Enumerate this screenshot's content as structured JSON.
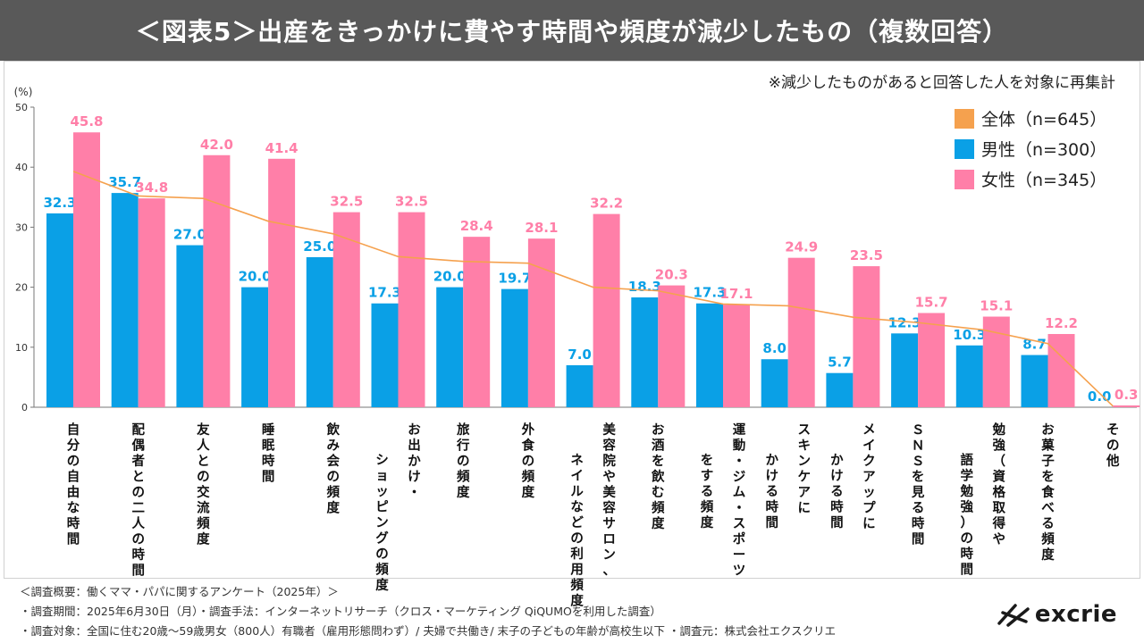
{
  "header": {
    "title": "＜図表5＞出産をきっかけに費やす時間や頻度が減少したもの（複数回答）"
  },
  "note": "※減少したものがあると回答した人を対象に再集計",
  "colors": {
    "overall": "#f5a14e",
    "male": "#0aa0e6",
    "female": "#ff7fa8",
    "header_bg": "#595959"
  },
  "chart_data": {
    "type": "bar",
    "unit_label": "(%)",
    "ylim": [
      0,
      50
    ],
    "yticks": [
      0,
      10,
      20,
      30,
      40,
      50
    ],
    "grid": false,
    "legend_position": "top-right",
    "categories": [
      [
        "自分の自由な時間"
      ],
      [
        "配偶者との二人の時間"
      ],
      [
        "友人との交流頻度"
      ],
      [
        "睡眠時間"
      ],
      [
        "飲み会の頻度"
      ],
      [
        "ショッピングの頻度",
        "お出かけ・"
      ],
      [
        "旅行の頻度"
      ],
      [
        "外食の頻度"
      ],
      [
        "ネイルなどの利用頻度",
        "美容院や美容サロン、"
      ],
      [
        "お酒を飲む頻度"
      ],
      [
        "をする頻度",
        "運動・ジム・スポーツ"
      ],
      [
        "かける時間",
        "スキンケアに"
      ],
      [
        "かける時間",
        "メイクアップに"
      ],
      [
        "ＳＮＳを見る時間"
      ],
      [
        "語学勉強）の時間",
        "勉強（資格取得や"
      ],
      [
        "お菓子を食べる頻度"
      ],
      [
        "その他"
      ]
    ],
    "series": [
      {
        "name": "全体（n=645）",
        "type": "line",
        "color": "#f5a14e",
        "values": [
          39.3,
          35.2,
          34.8,
          31.0,
          28.9,
          25.1,
          24.3,
          24.0,
          20.0,
          19.4,
          17.2,
          16.9,
          15.0,
          14.1,
          12.9,
          10.6,
          0.2
        ]
      },
      {
        "name": "男性（n=300）",
        "type": "bar",
        "color": "#0aa0e6",
        "values": [
          32.3,
          35.7,
          27.0,
          20.0,
          25.0,
          17.3,
          20.0,
          19.7,
          7.0,
          18.3,
          17.3,
          8.0,
          5.7,
          12.3,
          10.3,
          8.7,
          0.0
        ]
      },
      {
        "name": "女性（n=345）",
        "type": "bar",
        "color": "#ff7fa8",
        "values": [
          45.8,
          34.8,
          42.0,
          41.4,
          32.5,
          32.5,
          28.4,
          28.1,
          32.2,
          20.3,
          17.1,
          24.9,
          23.5,
          15.7,
          15.1,
          12.2,
          0.3
        ]
      }
    ]
  },
  "footer": {
    "line1": "＜調査概要：働くママ・パパに関するアンケート（2025年）＞",
    "line2": "・調査期間：2025年6月30日（月）・調査手法：インターネットリサーチ（クロス・マーケティング QiQUMOを利用した調査）",
    "line3": "・調査対象：全国に住む20歳～59歳男女（800人）有職者（雇用形態問わず）/ 夫婦で共働き/ 末子の子どもの年齢が高校生以下 ・調査元：株式会社エクスクリエ"
  },
  "logo": {
    "text": "excrie",
    "icon": "excrie-logo-mark-icon"
  }
}
